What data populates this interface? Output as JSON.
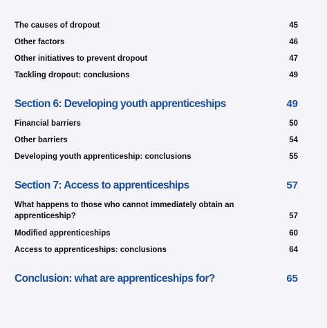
{
  "toc": {
    "entries": [
      {
        "label": "The causes of dropout",
        "page": "45"
      },
      {
        "label": "Other factors",
        "page": "46"
      },
      {
        "label": "Other initiatives to prevent dropout",
        "page": "47"
      },
      {
        "label": "Tackling dropout: conclusions",
        "page": "49"
      },
      {
        "label": "Section 6: Developing youth apprenticeships",
        "page": "49"
      },
      {
        "label": "Financial barriers",
        "page": "50"
      },
      {
        "label": "Other barriers",
        "page": "54"
      },
      {
        "label": "Developing youth apprenticeship: conclusions",
        "page": "55"
      },
      {
        "label": "Section 7: Access to apprenticeships",
        "page": "57"
      },
      {
        "label": "What happens to those who cannot immediately obtain an apprenticeship?",
        "page": "57"
      },
      {
        "label": "Modified apprenticeships",
        "page": "60"
      },
      {
        "label": "Access to apprenticeships: conclusions",
        "page": "64"
      },
      {
        "label": "Conclusion: what are apprenticeships for?",
        "page": "65"
      }
    ]
  }
}
